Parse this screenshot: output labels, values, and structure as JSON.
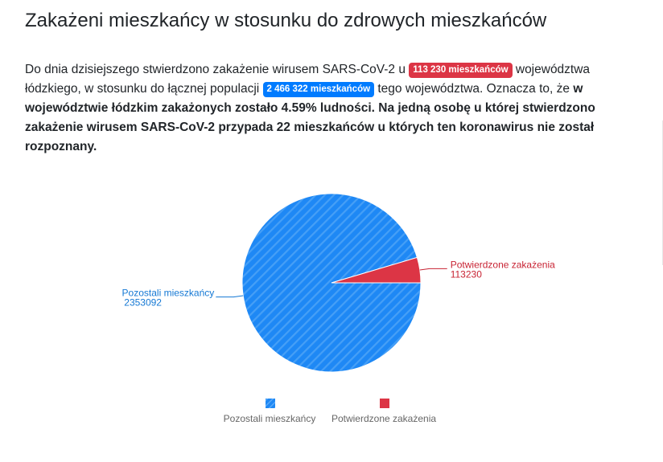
{
  "header": {
    "title": "Zakażeni mieszkańcy w stosunku do zdrowych mieszkańców"
  },
  "description": {
    "part1": "Do dnia dzisiejszego stwierdzono zakażenie wirusem SARS-CoV-2 u ",
    "badge_infected": "113 230 mieszkańców",
    "part2": " województwa łódzkiego, w stosunku do łącznej populacji ",
    "badge_population": "2 466 322 mieszkańców",
    "part3": " tego województwa. Oznacza to, że ",
    "bold": "w województwie łódzkim zakażonych zostało 4.59% ludności. Na jedną osobę u której stwierdzono zakażenie wirusem SARS-CoV-2 przypada 22 mieszkańców u których ten koronawirus nie został rozpoznany."
  },
  "chart_data": {
    "type": "pie",
    "slices": [
      {
        "name": "Pozostali mieszkańcy",
        "value": 2353092,
        "label_value": "2353092",
        "color": "#1e88f5"
      },
      {
        "name": "Potwierdzone zakażenia",
        "value": 113230,
        "label_value": "113230",
        "color": "#dc3545"
      }
    ],
    "legend": {
      "placement": "bottom",
      "items": [
        "Pozostali mieszkańcy",
        "Potwierdzone zakażenia"
      ]
    }
  },
  "colors": {
    "badge_red": "#dc3545",
    "badge_blue": "#007bff",
    "slice_blue": "#1e88f5",
    "slice_red": "#dc3545",
    "label_blue": "#1478d4",
    "label_red": "#c82333"
  }
}
